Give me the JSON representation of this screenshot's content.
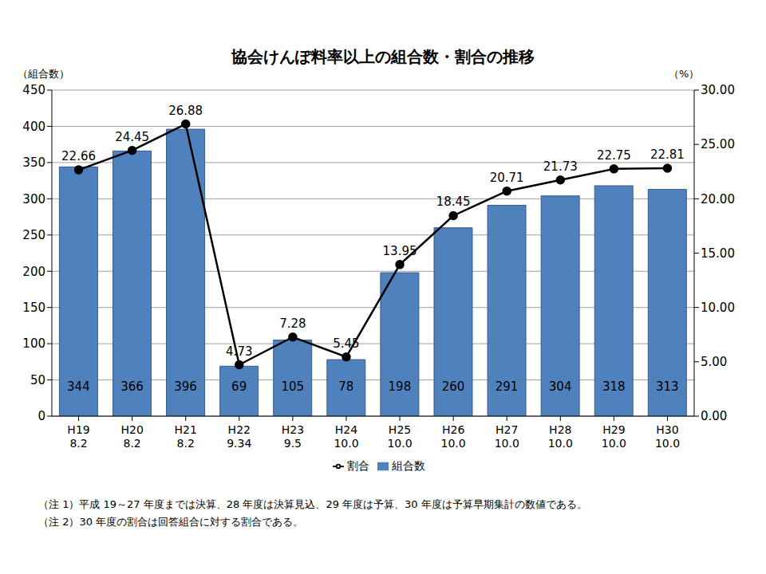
{
  "chart_data": {
    "type": "bar",
    "title": "協会けんぽ料率以上の組合数・割合の推移",
    "y_label": "（組合数）",
    "y2_label": "（%）",
    "categories": [
      "H19",
      "H20",
      "H21",
      "H22",
      "H23",
      "H24",
      "H25",
      "H26",
      "H27",
      "H28",
      "H29",
      "H30"
    ],
    "category_sublabels": [
      "8.2",
      "8.2",
      "8.2",
      "9.34",
      "9.5",
      "10.0",
      "10.0",
      "10.0",
      "10.0",
      "10.0",
      "10.0",
      "10.0"
    ],
    "series": [
      {
        "name": "組合数",
        "type": "bar",
        "color": "#4f81bd",
        "values": [
          344,
          366,
          396,
          69,
          105,
          78,
          198,
          260,
          291,
          304,
          318,
          313
        ]
      },
      {
        "name": "割合",
        "type": "line",
        "axis": "y2",
        "color": "#000000",
        "marker": "circle",
        "values": [
          22.66,
          24.45,
          26.88,
          4.73,
          7.28,
          5.45,
          13.95,
          18.45,
          20.71,
          21.73,
          22.75,
          22.81
        ]
      }
    ],
    "ylim": [
      0,
      450
    ],
    "yticks": [
      0,
      50,
      100,
      150,
      200,
      250,
      300,
      350,
      400,
      450
    ],
    "y2lim": [
      0,
      30
    ],
    "y2ticks": [
      {
        "value": 0,
        "label": "0.00"
      },
      {
        "value": 5,
        "label": "5.00"
      },
      {
        "value": 10,
        "label": "10.00"
      },
      {
        "value": 15,
        "label": "15.00"
      },
      {
        "value": 20,
        "label": "20.00"
      },
      {
        "value": 25,
        "label": "25.00"
      },
      {
        "value": 30,
        "label": "30.00"
      }
    ],
    "grid": true,
    "legend": "bottom",
    "data_labels": true,
    "notes": [
      "（注 1）平成 19～27 年度までは決算、28 年度は決算見込、29 年度は予算、30 年度は予算早期集計の数値である。",
      "（注 2）30 年度の割合は回答組合に対する割合である。"
    ]
  }
}
